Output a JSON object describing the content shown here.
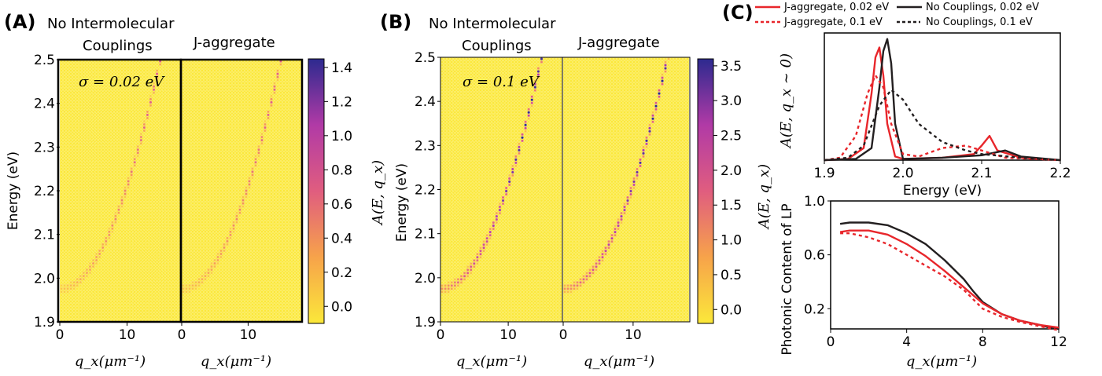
{
  "chart_data": [
    {
      "type": "heatmap",
      "panel_label": "(A)",
      "subplot_titles": [
        "No Intermolecular Couplings",
        "J-aggregate"
      ],
      "annotation": "σ = 0.02 eV",
      "xlabel": "q_x(μm⁻¹)",
      "ylabel": "Energy (eV)",
      "x_ticks": [
        0,
        10
      ],
      "y_ticks": [
        1.9,
        2.0,
        2.1,
        2.2,
        2.3,
        2.4,
        2.5
      ],
      "xlim": [
        0,
        18
      ],
      "ylim": [
        1.9,
        2.5
      ],
      "colorbar": {
        "label": "A(E, q_x)",
        "ticks": [
          0.0,
          0.2,
          0.4,
          0.6,
          0.8,
          1.0,
          1.2,
          1.4
        ],
        "range": [
          -0.1,
          1.45
        ]
      },
      "dispersion": {
        "E0": 1.975,
        "curvature": 0.00235
      },
      "max_value": 0.55
    },
    {
      "type": "heatmap",
      "panel_label": "(B)",
      "subplot_titles": [
        "No Intermolecular Couplings",
        "J-aggregate"
      ],
      "annotation": "σ = 0.1 eV",
      "xlabel": "q_x(μm⁻¹)",
      "ylabel": "Energy (eV)",
      "x_ticks": [
        0,
        10
      ],
      "y_ticks": [
        1.9,
        2.0,
        2.1,
        2.2,
        2.3,
        2.4,
        2.5
      ],
      "xlim": [
        0,
        18
      ],
      "ylim": [
        1.9,
        2.5
      ],
      "colorbar": {
        "label": "A(E, q_x)",
        "ticks": [
          0.0,
          0.5,
          1.0,
          1.5,
          2.0,
          2.5,
          3.0,
          3.5
        ],
        "range": [
          -0.2,
          3.6
        ]
      },
      "dispersion": {
        "E0": 1.975,
        "curvature": 0.00235
      },
      "max_value": 3.5
    },
    {
      "type": "line",
      "panel_label": "(C)",
      "xlabel": "Energy (eV)",
      "ylabel": "A(E, q_x ~ 0)",
      "xlim": [
        1.9,
        2.2
      ],
      "x_ticks": [
        "1.9",
        "2.0",
        "2.1",
        "2.2"
      ],
      "ylim": [
        0,
        1.05
      ],
      "series": [
        {
          "name": "J-aggregate, 0.02 eV",
          "color": "#e8262b",
          "dash": "solid",
          "x": [
            1.9,
            1.93,
            1.95,
            1.96,
            1.965,
            1.97,
            1.975,
            1.98,
            1.99,
            2.0,
            2.05,
            2.09,
            2.1,
            2.11,
            2.12,
            2.15,
            2.2
          ],
          "y": [
            0.0,
            0.01,
            0.1,
            0.55,
            0.85,
            0.93,
            0.7,
            0.3,
            0.03,
            0.01,
            0.02,
            0.05,
            0.12,
            0.2,
            0.08,
            0.02,
            0.0
          ]
        },
        {
          "name": "No Couplings, 0.02 eV",
          "color": "#231f20",
          "dash": "solid",
          "x": [
            1.9,
            1.94,
            1.96,
            1.97,
            1.975,
            1.98,
            1.985,
            1.99,
            2.0,
            2.05,
            2.1,
            2.13,
            2.15,
            2.2
          ],
          "y": [
            0.0,
            0.01,
            0.1,
            0.6,
            0.9,
            1.0,
            0.8,
            0.3,
            0.01,
            0.02,
            0.04,
            0.08,
            0.03,
            0.0
          ]
        },
        {
          "name": "J-aggregate, 0.1 eV",
          "color": "#e8262b",
          "dash": "dashed",
          "x": [
            1.9,
            1.92,
            1.94,
            1.955,
            1.965,
            1.975,
            1.985,
            2.0,
            2.02,
            2.05,
            2.08,
            2.1,
            2.13,
            2.2
          ],
          "y": [
            0.0,
            0.02,
            0.2,
            0.55,
            0.7,
            0.6,
            0.3,
            0.05,
            0.03,
            0.1,
            0.12,
            0.08,
            0.02,
            0.0
          ]
        },
        {
          "name": "No Couplings, 0.1 eV",
          "color": "#231f20",
          "dash": "dashed",
          "x": [
            1.9,
            1.93,
            1.95,
            1.97,
            1.985,
            2.0,
            2.02,
            2.05,
            2.08,
            2.1,
            2.15,
            2.2
          ],
          "y": [
            0.0,
            0.02,
            0.12,
            0.45,
            0.58,
            0.5,
            0.3,
            0.15,
            0.08,
            0.05,
            0.02,
            0.0
          ]
        }
      ]
    },
    {
      "type": "line",
      "xlabel": "q_x(μm⁻¹)",
      "ylabel": "Photonic Content of LP",
      "xlim": [
        0,
        12
      ],
      "x_ticks": [
        "0",
        "4",
        "8",
        "12"
      ],
      "ylim": [
        0.05,
        1.0
      ],
      "y_ticks": [
        {
          "value": 0.2,
          "label": "0.2"
        },
        {
          "value": 0.6,
          "label": "0.6"
        },
        {
          "value": 1.0,
          "label": "1.0"
        }
      ],
      "series": [
        {
          "name": "No Couplings, 0.02 eV",
          "color": "#231f20",
          "dash": "solid",
          "x": [
            0.5,
            1,
            2,
            3,
            4,
            5,
            6,
            7,
            7.5,
            8,
            9,
            10,
            11,
            11.5,
            12
          ],
          "y": [
            0.83,
            0.84,
            0.84,
            0.82,
            0.76,
            0.68,
            0.56,
            0.42,
            0.33,
            0.25,
            0.16,
            0.11,
            0.08,
            0.06,
            0.05
          ]
        },
        {
          "name": "J-aggregate, 0.02 eV",
          "color": "#e8262b",
          "dash": "solid",
          "x": [
            0.5,
            1,
            2,
            3,
            4,
            5,
            6,
            7,
            8,
            9,
            10,
            11,
            12
          ],
          "y": [
            0.77,
            0.78,
            0.78,
            0.75,
            0.68,
            0.59,
            0.48,
            0.36,
            0.24,
            0.16,
            0.11,
            0.08,
            0.06
          ]
        },
        {
          "name": "J-aggregate, 0.1 eV",
          "color": "#e8262b",
          "dash": "dashed",
          "x": [
            0.5,
            1,
            2,
            3,
            4,
            5,
            6,
            7,
            8,
            9,
            10,
            11,
            12
          ],
          "y": [
            0.76,
            0.76,
            0.73,
            0.68,
            0.6,
            0.52,
            0.44,
            0.34,
            0.2,
            0.14,
            0.1,
            0.07,
            0.04
          ]
        }
      ]
    }
  ]
}
